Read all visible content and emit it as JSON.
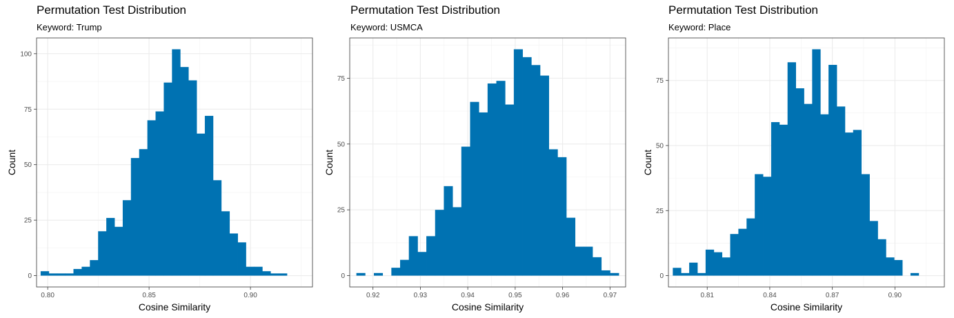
{
  "chart_data": [
    {
      "type": "histogram",
      "title": "Permutation Test Distribution",
      "subtitle": "Keyword: Trump",
      "xlabel": "Cosine Similarity",
      "ylabel": "Count",
      "xlim": [
        0.7945,
        0.9306
      ],
      "ylim": [
        -5.1,
        107.1
      ],
      "xticks": [
        "0.80",
        "0.85",
        "0.90"
      ],
      "xtick_values": [
        0.8,
        0.85,
        0.9
      ],
      "yticks": [
        "0",
        "25",
        "50",
        "75",
        "100"
      ],
      "ytick_values": [
        0,
        25,
        50,
        75,
        100
      ],
      "bin_start": 0.7965,
      "bin_width": 0.00405,
      "counts": [
        2,
        1,
        1,
        1,
        3,
        4,
        7,
        20,
        26,
        22,
        34,
        53,
        57,
        70,
        74,
        87,
        102,
        94,
        88,
        64,
        72,
        43,
        29,
        19,
        15,
        4,
        4,
        2,
        1,
        1
      ],
      "bar_color": "#0072B2",
      "grid": true
    },
    {
      "type": "histogram",
      "title": "Permutation Test Distribution",
      "subtitle": "Keyword: USMCA",
      "xlabel": "Cosine Similarity",
      "ylabel": "Count",
      "xlim": [
        0.9151,
        0.9733
      ],
      "ylim": [
        -4.3,
        90.3
      ],
      "xticks": [
        "0.92",
        "0.93",
        "0.94",
        "0.95",
        "0.96",
        "0.97"
      ],
      "xtick_values": [
        0.92,
        0.93,
        0.94,
        0.95,
        0.96,
        0.97
      ],
      "yticks": [
        "0",
        "25",
        "50",
        "75"
      ],
      "ytick_values": [
        0,
        25,
        50,
        75
      ],
      "bin_start": 0.9165,
      "bin_width": 0.001845,
      "counts": [
        1,
        0,
        1,
        0,
        3,
        6,
        15,
        9,
        15,
        25,
        34,
        26,
        49,
        66,
        62,
        73,
        74,
        65,
        86,
        83,
        80,
        76,
        48,
        45,
        22,
        11,
        11,
        7,
        2,
        1
      ],
      "bar_color": "#0072B2",
      "grid": true
    },
    {
      "type": "histogram",
      "title": "Permutation Test Distribution",
      "subtitle": "Keyword: Place",
      "xlabel": "Cosine Similarity",
      "ylabel": "Count",
      "xlim": [
        0.7914,
        0.9237
      ],
      "ylim": [
        -4.35,
        91.35
      ],
      "xticks": [
        "0.81",
        "0.84",
        "0.87",
        "0.90"
      ],
      "xtick_values": [
        0.81,
        0.84,
        0.87,
        0.9
      ],
      "yticks": [
        "0",
        "25",
        "50",
        "75"
      ],
      "ytick_values": [
        0,
        25,
        50,
        75
      ],
      "bin_start": 0.7935,
      "bin_width": 0.00393,
      "counts": [
        3,
        1,
        5,
        1,
        10,
        9,
        7,
        16,
        18,
        22,
        39,
        38,
        59,
        58,
        82,
        72,
        66,
        87,
        62,
        81,
        65,
        55,
        56,
        39,
        21,
        14,
        7,
        6,
        0,
        1
      ],
      "bar_color": "#0072B2",
      "grid": true
    }
  ]
}
